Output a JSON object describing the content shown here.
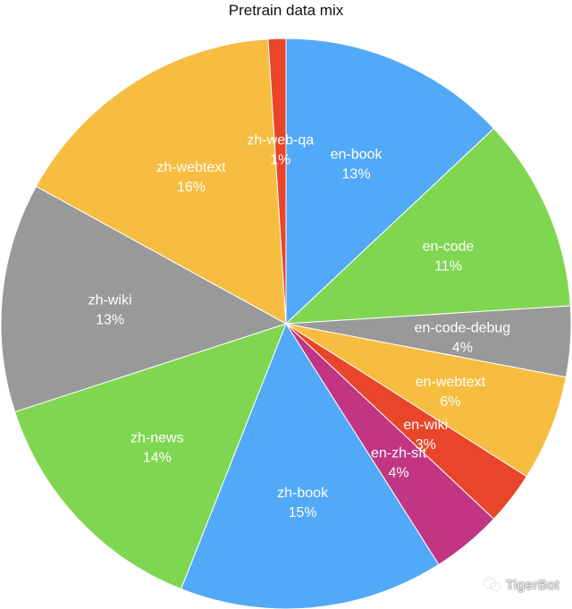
{
  "chart_data": {
    "type": "pie",
    "title": "Pretrain data mix",
    "slices": [
      {
        "label": "en-book",
        "value": 13,
        "percent_label": "13%",
        "color": "#52a9f7"
      },
      {
        "label": "en-code",
        "value": 11,
        "percent_label": "11%",
        "color": "#7fd651"
      },
      {
        "label": "en-code-debug",
        "value": 4,
        "percent_label": "4%",
        "color": "#999999"
      },
      {
        "label": "en-webtext",
        "value": 6,
        "percent_label": "6%",
        "color": "#f6bd41"
      },
      {
        "label": "en-wiki",
        "value": 3,
        "percent_label": "3%",
        "color": "#e8452b"
      },
      {
        "label": "en-zh-sft",
        "value": 4,
        "percent_label": "4%",
        "color": "#c13583"
      },
      {
        "label": "zh-book",
        "value": 15,
        "percent_label": "15%",
        "color": "#52a9f7"
      },
      {
        "label": "zh-news",
        "value": 14,
        "percent_label": "14%",
        "color": "#7fd651"
      },
      {
        "label": "zh-wiki",
        "value": 13,
        "percent_label": "13%",
        "color": "#999999"
      },
      {
        "label": "zh-webtext",
        "value": 16,
        "percent_label": "16%",
        "color": "#f6bd41"
      },
      {
        "label": "zh-web-qa",
        "value": 1,
        "percent_label": "1%",
        "color": "#e8452b"
      }
    ]
  },
  "watermark": {
    "text": "TigerBot",
    "icon": "wechat-icon"
  }
}
